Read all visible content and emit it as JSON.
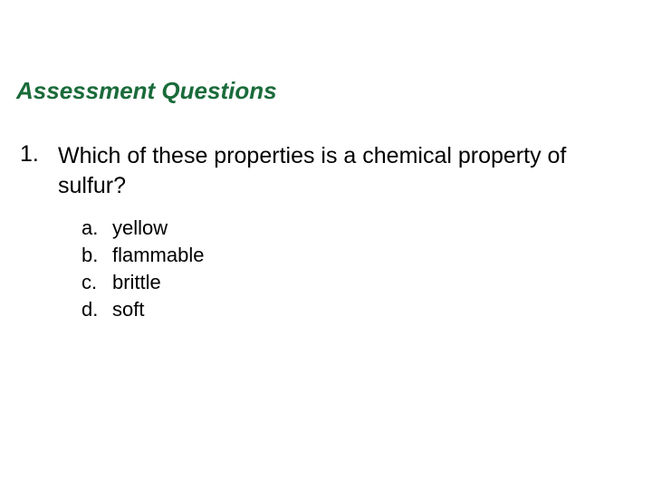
{
  "title": "Assessment Questions",
  "title_color": "#1a6b3a",
  "title_fontsize": 26,
  "question": {
    "number": "1.",
    "text": "Which of these properties is a chemical property of sulfur?",
    "fontsize": 25,
    "color": "#000000"
  },
  "options": [
    {
      "letter": "a.",
      "text": "yellow"
    },
    {
      "letter": "b.",
      "text": "flammable"
    },
    {
      "letter": "c.",
      "text": "brittle"
    },
    {
      "letter": "d.",
      "text": "soft"
    }
  ],
  "option_fontsize": 22,
  "option_color": "#000000",
  "background_color": "#ffffff"
}
